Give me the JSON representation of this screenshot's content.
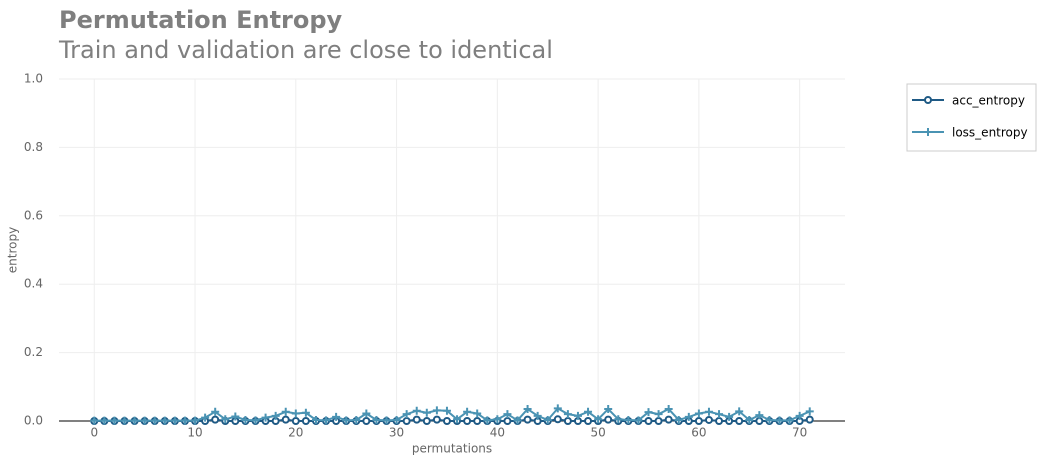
{
  "chart_data": {
    "type": "line",
    "title": "Permutation Entropy",
    "subtitle": "Train and validation are close to identical",
    "x_label": "permutations",
    "y_label": "entropy",
    "x": [
      0,
      1,
      2,
      3,
      4,
      5,
      6,
      7,
      8,
      9,
      10,
      11,
      12,
      13,
      14,
      15,
      16,
      17,
      18,
      19,
      20,
      21,
      22,
      23,
      24,
      25,
      26,
      27,
      28,
      29,
      30,
      31,
      32,
      33,
      34,
      35,
      36,
      37,
      38,
      39,
      40,
      41,
      42,
      43,
      44,
      45,
      46,
      47,
      48,
      49,
      50,
      51,
      52,
      53,
      54,
      55,
      56,
      57,
      58,
      59,
      60,
      61,
      62,
      63,
      64,
      65,
      66,
      67,
      68,
      69,
      70,
      71
    ],
    "series": [
      {
        "name": "acc_entropy",
        "color": "#1f5a85",
        "marker": "circle",
        "values": [
          0,
          0,
          0,
          0,
          0,
          0,
          0,
          0,
          0,
          0,
          0,
          0,
          0.004,
          0,
          0,
          0,
          0,
          0,
          0,
          0.004,
          0,
          0,
          0,
          0,
          0,
          0,
          0,
          0,
          0,
          0,
          0,
          0,
          0.004,
          0,
          0.004,
          0,
          0,
          0,
          0,
          0,
          0,
          0,
          0,
          0.004,
          0,
          0,
          0.005,
          0,
          0,
          0,
          0,
          0.004,
          0,
          0,
          0,
          0,
          0,
          0.004,
          0,
          0,
          0,
          0.003,
          0,
          0,
          0,
          0,
          0,
          0,
          0,
          0,
          0,
          0.004
        ]
      },
      {
        "name": "loss_entropy",
        "color": "#4a93b3",
        "marker": "plus",
        "values": [
          0.001,
          0.001,
          0.001,
          0.001,
          0.001,
          0.001,
          0.001,
          0.001,
          0.001,
          0.001,
          0.001,
          0.01,
          0.027,
          0.005,
          0.013,
          0.003,
          0.002,
          0.01,
          0.015,
          0.027,
          0.022,
          0.024,
          0.003,
          0.002,
          0.012,
          0.002,
          0.003,
          0.022,
          0.003,
          0.002,
          0.003,
          0.02,
          0.03,
          0.024,
          0.031,
          0.03,
          0.005,
          0.027,
          0.022,
          0.002,
          0.005,
          0.02,
          0.002,
          0.035,
          0.015,
          0.003,
          0.037,
          0.02,
          0.015,
          0.027,
          0.005,
          0.035,
          0.005,
          0.003,
          0.002,
          0.026,
          0.02,
          0.035,
          0.003,
          0.012,
          0.022,
          0.027,
          0.02,
          0.012,
          0.028,
          0.003,
          0.017,
          0.003,
          0.002,
          0.002,
          0.015,
          0.028
        ]
      }
    ],
    "xlim": [
      -3.5,
      74.5
    ],
    "ylim": [
      0,
      1
    ],
    "xticks": [
      0,
      10,
      20,
      30,
      40,
      50,
      60,
      70
    ],
    "yticks": [
      {
        "value": 0,
        "label": "0.0"
      },
      0.2,
      0.4,
      0.6,
      0.8,
      {
        "value": 1,
        "label": "1.0"
      }
    ],
    "grid": true,
    "legend": "outside-right"
  }
}
